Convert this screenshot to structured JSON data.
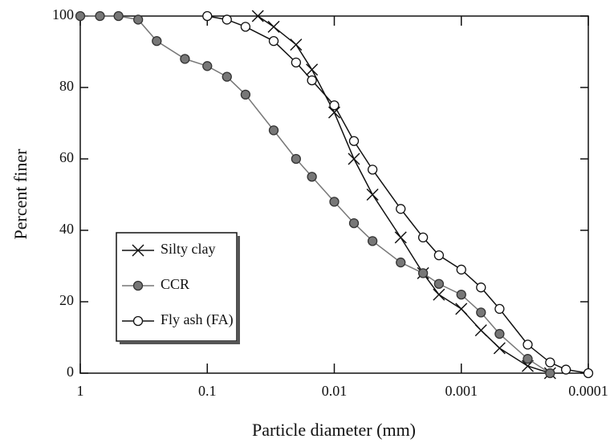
{
  "chart_data": {
    "type": "line",
    "x_label": "Particle diameter (mm)",
    "y_label": "Percent finer",
    "xscale": "log",
    "xlim": [
      1,
      0.0001
    ],
    "xticks": [
      1,
      0.1,
      0.01,
      0.001,
      0.0001
    ],
    "ylim": [
      0,
      100
    ],
    "yticks": [
      0,
      20,
      40,
      60,
      80,
      100
    ],
    "legend": "lower left",
    "series": [
      {
        "name": "Silty clay",
        "color": "#111111",
        "marker": "x",
        "x": [
          0.04,
          0.03,
          0.02,
          0.015,
          0.01,
          0.007,
          0.005,
          0.003,
          0.002,
          0.0015,
          0.001,
          0.0007,
          0.0005,
          0.0003,
          0.0002
        ],
        "values": [
          100,
          97,
          92,
          85,
          73,
          60,
          50,
          38,
          28,
          22,
          18,
          12,
          7,
          2,
          0
        ]
      },
      {
        "name": "CCR",
        "color": "#777777",
        "marker": "filled-circle",
        "x": [
          1,
          0.7,
          0.5,
          0.35,
          0.25,
          0.15,
          0.1,
          0.07,
          0.05,
          0.03,
          0.02,
          0.015,
          0.01,
          0.007,
          0.005,
          0.003,
          0.002,
          0.0015,
          0.001,
          0.0007,
          0.0005,
          0.0003,
          0.0002
        ],
        "values": [
          100,
          100,
          100,
          99,
          93,
          88,
          86,
          83,
          78,
          68,
          60,
          55,
          48,
          42,
          37,
          31,
          28,
          25,
          22,
          17,
          11,
          4,
          0
        ]
      },
      {
        "name": "Fly ash (FA)",
        "color": "#111111",
        "marker": "circle",
        "x": [
          0.1,
          0.07,
          0.05,
          0.03,
          0.02,
          0.015,
          0.01,
          0.007,
          0.005,
          0.003,
          0.002,
          0.0015,
          0.001,
          0.0007,
          0.0005,
          0.0003,
          0.0002,
          0.00015,
          0.0001
        ],
        "values": [
          100,
          99,
          97,
          93,
          87,
          82,
          75,
          65,
          57,
          46,
          38,
          33,
          29,
          24,
          18,
          8,
          3,
          1,
          0
        ]
      }
    ]
  }
}
